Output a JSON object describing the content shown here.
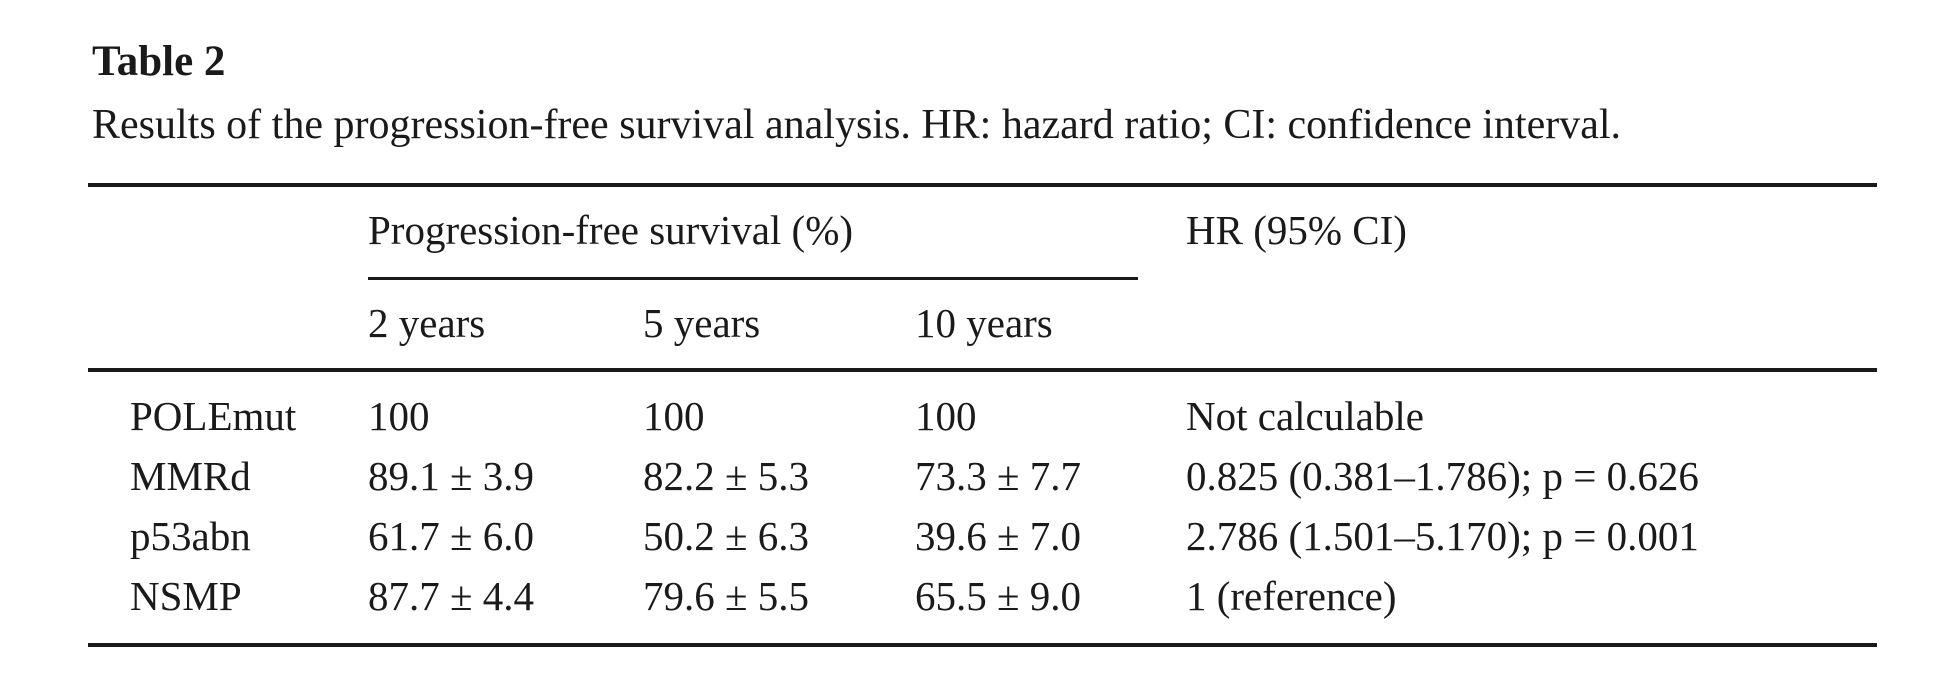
{
  "table": {
    "title": "Table 2",
    "caption": "Results of the progression-free survival analysis. HR: hazard ratio; CI: confidence interval.",
    "column_group_header": "Progression-free survival (%)",
    "hr_header": "HR (95% CI)",
    "subheaders": [
      "2 years",
      "5 years",
      "10 years"
    ],
    "rows": [
      {
        "label": "POLEmut",
        "y2": "100",
        "y5": "100",
        "y10": "100",
        "hr": "Not calculable"
      },
      {
        "label": "MMRd",
        "y2": "89.1 ± 3.9",
        "y5": "82.2 ± 5.3",
        "y10": "73.3 ± 7.7",
        "hr": "0.825 (0.381–1.786); p = 0.626"
      },
      {
        "label": "p53abn",
        "y2": "61.7 ± 6.0",
        "y5": "50.2 ± 6.3",
        "y10": "39.6 ± 7.0",
        "hr": "2.786 (1.501–5.170); p = 0.001"
      },
      {
        "label": "NSMP",
        "y2": "87.7 ± 4.4",
        "y5": "79.6 ± 5.5",
        "y10": "65.5 ± 9.0",
        "hr": "1 (reference)"
      }
    ],
    "colors": {
      "text": "#1a1a1a",
      "rule": "#1a1a1a",
      "background": "#ffffff"
    }
  }
}
